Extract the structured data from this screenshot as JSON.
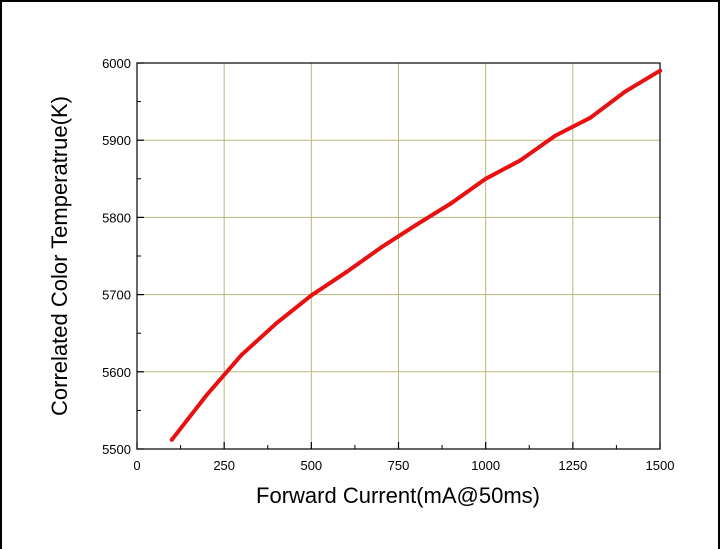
{
  "chart_data": {
    "type": "line",
    "title": "",
    "xlabel": "Forward Current(mA@50ms)",
    "ylabel": "Correlated Color Temperatrue(K)",
    "xlim": [
      0,
      1500
    ],
    "ylim": [
      5500,
      6000
    ],
    "xticks": [
      0,
      250,
      500,
      750,
      1000,
      1250,
      1500
    ],
    "yticks": [
      5500,
      5600,
      5700,
      5800,
      5900,
      6000
    ],
    "xtick_labels": [
      "0",
      "250",
      "500",
      "750",
      "1000",
      "1250",
      "1500"
    ],
    "ytick_labels": [
      "5500",
      "5600",
      "5700",
      "5800",
      "5900",
      "6000"
    ],
    "grid": true,
    "grid_color": "#b8b87a",
    "line_color": "#e81010",
    "series": [
      {
        "x": [
          100,
          200,
          300,
          400,
          500,
          600,
          700,
          800,
          900,
          1000,
          1100,
          1200,
          1300,
          1400,
          1500
        ],
        "y": [
          5512,
          5570,
          5622,
          5663,
          5699,
          5729,
          5761,
          5790,
          5818,
          5850,
          5874,
          5906,
          5929,
          5963,
          5990
        ]
      }
    ]
  }
}
